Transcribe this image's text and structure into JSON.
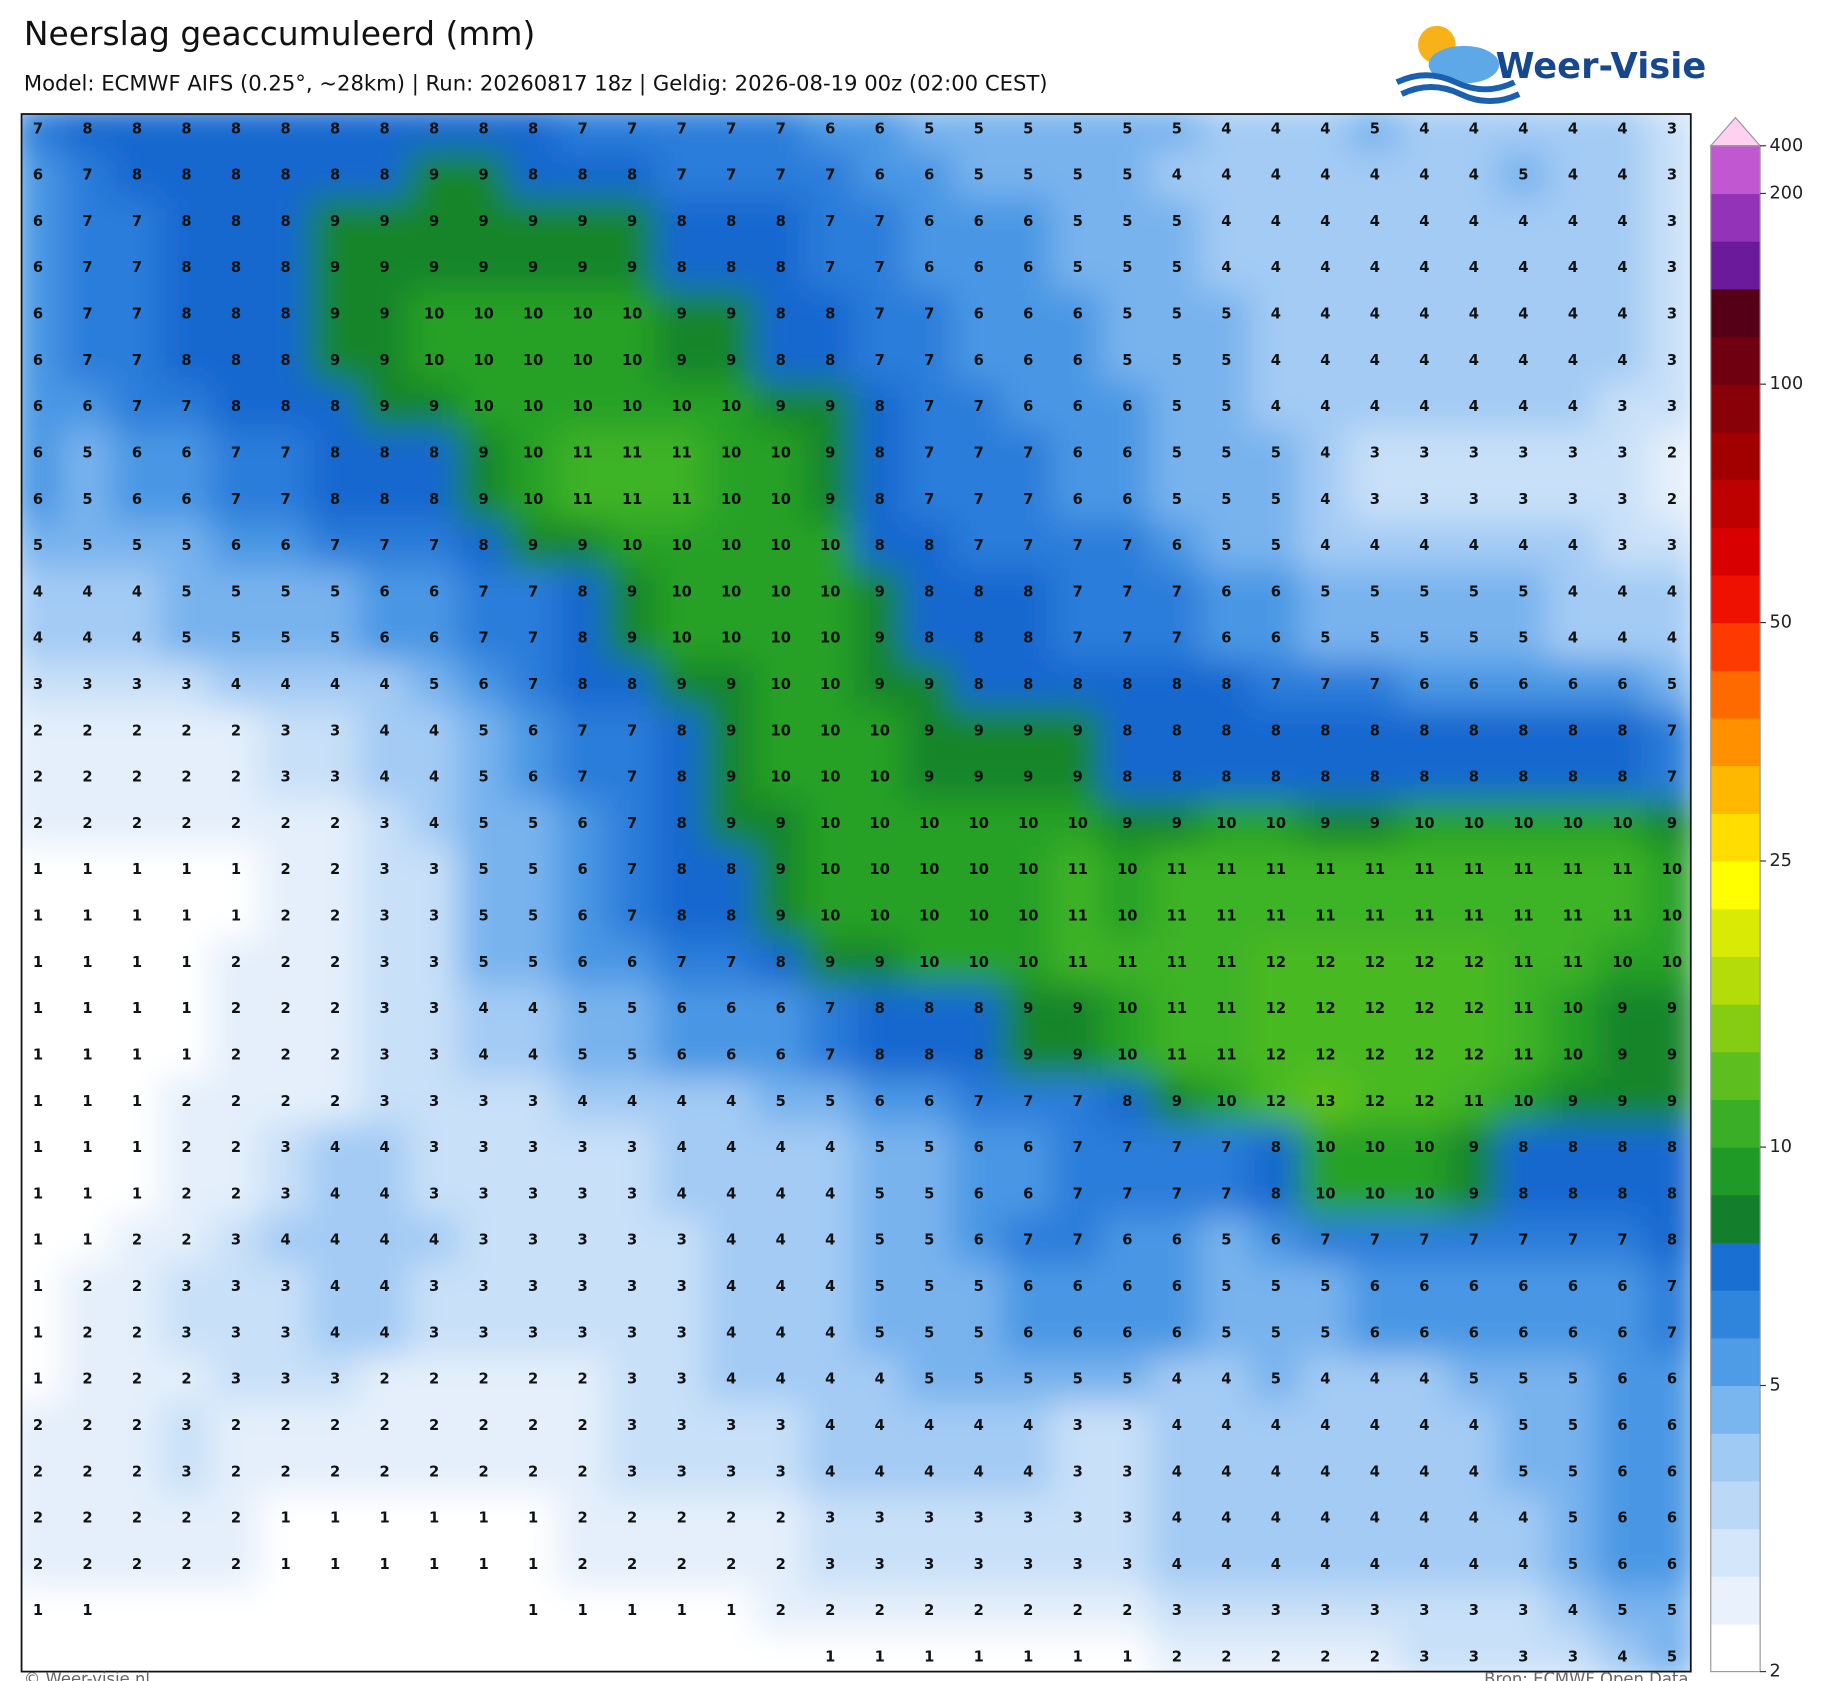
{
  "header": {
    "title": "Neerslag geaccumuleerd (mm)",
    "subtitle": "Model: ECMWF AIFS (0.25°, ~28km)  |  Run: 20260817 18z  |  Geldig: 2026-08-19 00z (02:00 CEST)"
  },
  "logo": "Weer-Visie",
  "footer": {
    "left": "© Weer-visie.nl",
    "right": "Bron: ECMWF Open Data"
  },
  "colorbar": {
    "ticks": [
      2,
      5,
      10,
      25,
      50,
      100,
      200,
      400
    ],
    "colors": [
      "#ffffff",
      "#e8f1fc",
      "#d3e6fa",
      "#bbd9f7",
      "#9ecaf3",
      "#79b5ee",
      "#4f9ce6",
      "#2f84dc",
      "#1a6fd2",
      "#137f2c",
      "#1f9a27",
      "#3aae27",
      "#5cbe1f",
      "#86cc12",
      "#b3dc0a",
      "#d9ea05",
      "#ffff00",
      "#ffdd00",
      "#ffb800",
      "#ff9000",
      "#ff6a00",
      "#ff3a00",
      "#ee1000",
      "#d80000",
      "#bd0000",
      "#a20000",
      "#880008",
      "#6e0010",
      "#560018",
      "#6a1a9a",
      "#9233b8",
      "#c257d2"
    ],
    "top_color": "#ffd0f0"
  },
  "value_colors": [
    "#ffffff",
    "#ffffff",
    "#e4effb",
    "#c8e0f8",
    "#a3cbf4",
    "#78b3ee",
    "#4a97e4",
    "#2a7dda",
    "#1768cf",
    "#17852a",
    "#27a127",
    "#3cb326",
    "#4ab923",
    "#5ec21e"
  ],
  "grid": {
    "rows": [
      [
        7,
        8,
        8,
        8,
        8,
        8,
        8,
        8,
        8,
        8,
        8,
        7,
        7,
        7,
        7,
        7,
        6,
        6,
        5,
        5,
        5,
        5,
        5,
        5,
        4,
        4,
        4,
        5,
        4,
        4,
        4,
        4,
        4,
        3
      ],
      [
        6,
        7,
        8,
        8,
        8,
        8,
        8,
        8,
        9,
        9,
        8,
        8,
        8,
        7,
        7,
        7,
        7,
        6,
        6,
        5,
        5,
        5,
        5,
        4,
        4,
        4,
        4,
        4,
        4,
        4,
        5,
        4,
        4,
        3
      ],
      [
        6,
        7,
        7,
        8,
        8,
        8,
        9,
        9,
        9,
        9,
        9,
        9,
        9,
        8,
        8,
        8,
        7,
        7,
        6,
        6,
        6,
        5,
        5,
        5,
        4,
        4,
        4,
        4,
        4,
        4,
        4,
        4,
        4,
        3
      ],
      [
        6,
        7,
        7,
        8,
        8,
        8,
        9,
        9,
        9,
        9,
        9,
        9,
        9,
        8,
        8,
        8,
        7,
        7,
        6,
        6,
        6,
        5,
        5,
        5,
        4,
        4,
        4,
        4,
        4,
        4,
        4,
        4,
        4,
        3
      ],
      [
        6,
        7,
        7,
        8,
        8,
        8,
        9,
        9,
        10,
        10,
        10,
        10,
        10,
        9,
        9,
        8,
        8,
        7,
        7,
        6,
        6,
        6,
        5,
        5,
        5,
        4,
        4,
        4,
        4,
        4,
        4,
        4,
        4,
        3
      ],
      [
        6,
        7,
        7,
        8,
        8,
        8,
        9,
        9,
        10,
        10,
        10,
        10,
        10,
        9,
        9,
        8,
        8,
        7,
        7,
        6,
        6,
        6,
        5,
        5,
        5,
        4,
        4,
        4,
        4,
        4,
        4,
        4,
        4,
        3
      ],
      [
        6,
        6,
        7,
        7,
        8,
        8,
        8,
        9,
        9,
        10,
        10,
        10,
        10,
        10,
        10,
        9,
        9,
        8,
        7,
        7,
        6,
        6,
        6,
        5,
        5,
        4,
        4,
        4,
        4,
        4,
        4,
        4,
        3,
        3
      ],
      [
        6,
        5,
        6,
        6,
        7,
        7,
        8,
        8,
        8,
        9,
        10,
        11,
        11,
        11,
        10,
        10,
        9,
        8,
        7,
        7,
        7,
        6,
        6,
        5,
        5,
        5,
        4,
        3,
        3,
        3,
        3,
        3,
        3,
        2
      ],
      [
        6,
        5,
        6,
        6,
        7,
        7,
        8,
        8,
        8,
        9,
        10,
        11,
        11,
        11,
        10,
        10,
        9,
        8,
        7,
        7,
        7,
        6,
        6,
        5,
        5,
        5,
        4,
        3,
        3,
        3,
        3,
        3,
        3,
        2
      ],
      [
        5,
        5,
        5,
        5,
        6,
        6,
        7,
        7,
        7,
        8,
        9,
        9,
        10,
        10,
        10,
        10,
        10,
        8,
        8,
        7,
        7,
        7,
        7,
        6,
        5,
        5,
        4,
        4,
        4,
        4,
        4,
        4,
        3,
        3
      ],
      [
        4,
        4,
        4,
        5,
        5,
        5,
        5,
        6,
        6,
        7,
        7,
        8,
        9,
        10,
        10,
        10,
        10,
        9,
        8,
        8,
        8,
        7,
        7,
        7,
        6,
        6,
        5,
        5,
        5,
        5,
        5,
        4,
        4,
        4
      ],
      [
        4,
        4,
        4,
        5,
        5,
        5,
        5,
        6,
        6,
        7,
        7,
        8,
        9,
        10,
        10,
        10,
        10,
        9,
        8,
        8,
        8,
        7,
        7,
        7,
        6,
        6,
        5,
        5,
        5,
        5,
        5,
        4,
        4,
        4
      ],
      [
        3,
        3,
        3,
        3,
        4,
        4,
        4,
        4,
        5,
        6,
        7,
        8,
        8,
        9,
        9,
        10,
        10,
        9,
        9,
        8,
        8,
        8,
        8,
        8,
        8,
        7,
        7,
        7,
        6,
        6,
        6,
        6,
        6,
        5
      ],
      [
        2,
        2,
        2,
        2,
        2,
        3,
        3,
        4,
        4,
        5,
        6,
        7,
        7,
        8,
        9,
        10,
        10,
        10,
        9,
        9,
        9,
        9,
        8,
        8,
        8,
        8,
        8,
        8,
        8,
        8,
        8,
        8,
        8,
        7
      ],
      [
        2,
        2,
        2,
        2,
        2,
        3,
        3,
        4,
        4,
        5,
        6,
        7,
        7,
        8,
        9,
        10,
        10,
        10,
        9,
        9,
        9,
        9,
        8,
        8,
        8,
        8,
        8,
        8,
        8,
        8,
        8,
        8,
        8,
        7
      ],
      [
        2,
        2,
        2,
        2,
        2,
        2,
        2,
        3,
        4,
        5,
        5,
        6,
        7,
        8,
        9,
        9,
        10,
        10,
        10,
        10,
        10,
        10,
        9,
        9,
        10,
        10,
        9,
        9,
        10,
        10,
        10,
        10,
        10,
        9
      ],
      [
        1,
        1,
        1,
        1,
        1,
        2,
        2,
        3,
        3,
        5,
        5,
        6,
        7,
        8,
        8,
        9,
        10,
        10,
        10,
        10,
        10,
        11,
        10,
        11,
        11,
        11,
        11,
        11,
        11,
        11,
        11,
        11,
        11,
        10
      ],
      [
        1,
        1,
        1,
        1,
        1,
        2,
        2,
        3,
        3,
        5,
        5,
        6,
        7,
        8,
        8,
        9,
        10,
        10,
        10,
        10,
        10,
        11,
        10,
        11,
        11,
        11,
        11,
        11,
        11,
        11,
        11,
        11,
        11,
        10
      ],
      [
        1,
        1,
        1,
        1,
        2,
        2,
        2,
        3,
        3,
        5,
        5,
        6,
        6,
        7,
        7,
        8,
        9,
        9,
        10,
        10,
        10,
        11,
        11,
        11,
        11,
        12,
        12,
        12,
        12,
        12,
        11,
        11,
        10,
        10
      ],
      [
        1,
        1,
        1,
        1,
        2,
        2,
        2,
        3,
        3,
        4,
        4,
        5,
        5,
        6,
        6,
        6,
        7,
        8,
        8,
        8,
        9,
        9,
        10,
        11,
        11,
        12,
        12,
        12,
        12,
        12,
        11,
        10,
        9,
        9
      ],
      [
        1,
        1,
        1,
        1,
        2,
        2,
        2,
        3,
        3,
        4,
        4,
        5,
        5,
        6,
        6,
        6,
        7,
        8,
        8,
        8,
        9,
        9,
        10,
        11,
        11,
        12,
        12,
        12,
        12,
        12,
        11,
        10,
        9,
        9
      ],
      [
        1,
        1,
        1,
        2,
        2,
        2,
        2,
        3,
        3,
        3,
        3,
        4,
        4,
        4,
        4,
        5,
        5,
        6,
        6,
        7,
        7,
        7,
        8,
        9,
        10,
        12,
        13,
        12,
        12,
        11,
        10,
        9,
        9,
        9
      ],
      [
        1,
        1,
        1,
        2,
        2,
        3,
        4,
        4,
        3,
        3,
        3,
        3,
        3,
        4,
        4,
        4,
        4,
        5,
        5,
        6,
        6,
        7,
        7,
        7,
        7,
        8,
        10,
        10,
        10,
        9,
        8,
        8,
        8,
        8
      ],
      [
        1,
        1,
        1,
        2,
        2,
        3,
        4,
        4,
        3,
        3,
        3,
        3,
        3,
        4,
        4,
        4,
        4,
        5,
        5,
        6,
        6,
        7,
        7,
        7,
        7,
        8,
        10,
        10,
        10,
        9,
        8,
        8,
        8,
        8
      ],
      [
        1,
        1,
        2,
        2,
        3,
        4,
        4,
        4,
        4,
        3,
        3,
        3,
        3,
        3,
        4,
        4,
        4,
        5,
        5,
        6,
        7,
        7,
        6,
        6,
        5,
        6,
        7,
        7,
        7,
        7,
        7,
        7,
        7,
        8
      ],
      [
        1,
        2,
        2,
        3,
        3,
        3,
        4,
        4,
        3,
        3,
        3,
        3,
        3,
        3,
        4,
        4,
        4,
        5,
        5,
        5,
        6,
        6,
        6,
        6,
        5,
        5,
        5,
        6,
        6,
        6,
        6,
        6,
        6,
        7
      ],
      [
        1,
        2,
        2,
        3,
        3,
        3,
        4,
        4,
        3,
        3,
        3,
        3,
        3,
        3,
        4,
        4,
        4,
        5,
        5,
        5,
        6,
        6,
        6,
        6,
        5,
        5,
        5,
        6,
        6,
        6,
        6,
        6,
        6,
        7
      ],
      [
        1,
        2,
        2,
        2,
        3,
        3,
        3,
        2,
        2,
        2,
        2,
        2,
        3,
        3,
        4,
        4,
        4,
        4,
        5,
        5,
        5,
        5,
        5,
        4,
        4,
        5,
        4,
        4,
        4,
        5,
        5,
        5,
        6,
        6
      ],
      [
        2,
        2,
        2,
        3,
        2,
        2,
        2,
        2,
        2,
        2,
        2,
        2,
        3,
        3,
        3,
        3,
        4,
        4,
        4,
        4,
        4,
        3,
        3,
        4,
        4,
        4,
        4,
        4,
        4,
        4,
        5,
        5,
        6,
        6
      ],
      [
        2,
        2,
        2,
        3,
        2,
        2,
        2,
        2,
        2,
        2,
        2,
        2,
        3,
        3,
        3,
        3,
        4,
        4,
        4,
        4,
        4,
        3,
        3,
        4,
        4,
        4,
        4,
        4,
        4,
        4,
        5,
        5,
        6,
        6
      ],
      [
        2,
        2,
        2,
        2,
        2,
        1,
        1,
        1,
        1,
        1,
        1,
        2,
        2,
        2,
        2,
        2,
        3,
        3,
        3,
        3,
        3,
        3,
        3,
        4,
        4,
        4,
        4,
        4,
        4,
        4,
        4,
        5,
        6,
        6
      ],
      [
        2,
        2,
        2,
        2,
        2,
        1,
        1,
        1,
        1,
        1,
        1,
        2,
        2,
        2,
        2,
        2,
        3,
        3,
        3,
        3,
        3,
        3,
        3,
        4,
        4,
        4,
        4,
        4,
        4,
        4,
        4,
        5,
        6,
        6
      ],
      [
        1,
        1,
        null,
        null,
        null,
        null,
        null,
        null,
        null,
        null,
        1,
        1,
        1,
        1,
        1,
        2,
        2,
        2,
        2,
        2,
        2,
        2,
        2,
        3,
        3,
        3,
        3,
        3,
        3,
        3,
        3,
        4,
        5,
        5
      ],
      [
        null,
        null,
        null,
        null,
        null,
        null,
        null,
        null,
        null,
        null,
        null,
        null,
        null,
        null,
        null,
        null,
        1,
        1,
        1,
        1,
        1,
        1,
        1,
        2,
        2,
        2,
        2,
        2,
        3,
        3,
        3,
        3,
        4,
        5
      ]
    ]
  }
}
